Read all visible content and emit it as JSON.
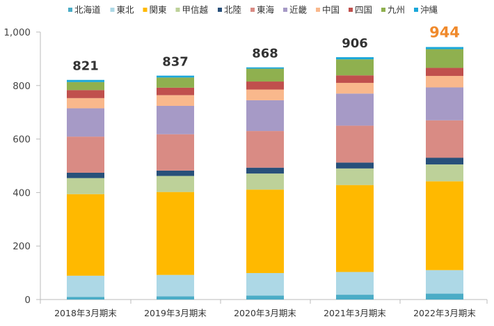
{
  "chart_data": {
    "type": "bar",
    "stacked": true,
    "categories": [
      "2018年3月期末",
      "2019年3月期末",
      "2020年3月期末",
      "2021年3月期末",
      "2022年3月期末"
    ],
    "series": [
      {
        "name": "北海道",
        "color": "#4bacc6",
        "values": [
          10,
          12,
          15,
          18,
          22
        ]
      },
      {
        "name": "東北",
        "color": "#add8e6",
        "values": [
          79,
          80,
          84,
          85,
          88
        ]
      },
      {
        "name": "関東",
        "color": "#ffb900",
        "values": [
          305,
          310,
          312,
          325,
          332
        ]
      },
      {
        "name": "甲信越",
        "color": "#bdd199",
        "values": [
          60,
          60,
          60,
          62,
          63
        ]
      },
      {
        "name": "北陸",
        "color": "#28507a",
        "values": [
          20,
          20,
          22,
          22,
          25
        ]
      },
      {
        "name": "東海",
        "color": "#d98b84",
        "values": [
          135,
          136,
          137,
          138,
          140
        ]
      },
      {
        "name": "近畿",
        "color": "#a69ac6",
        "values": [
          106,
          106,
          115,
          120,
          123
        ]
      },
      {
        "name": "中国",
        "color": "#f9b88c",
        "values": [
          38,
          40,
          40,
          40,
          43
        ]
      },
      {
        "name": "四国",
        "color": "#c0504d",
        "values": [
          30,
          28,
          30,
          28,
          30
        ]
      },
      {
        "name": "九州",
        "color": "#8fb04f",
        "values": [
          30,
          38,
          48,
          60,
          70
        ]
      },
      {
        "name": "沖縄",
        "color": "#1aa7d9",
        "values": [
          8,
          7,
          5,
          8,
          8
        ]
      }
    ],
    "totals": [
      {
        "label": "821",
        "color": "#333333"
      },
      {
        "label": "837",
        "color": "#333333"
      },
      {
        "label": "868",
        "color": "#333333"
      },
      {
        "label": "906",
        "color": "#333333"
      },
      {
        "label": "944",
        "color": "#f08a2c"
      }
    ],
    "ylim": [
      0,
      1000
    ],
    "yticks": [
      "0",
      "200",
      "400",
      "600",
      "800",
      "1,000"
    ],
    "grid": false,
    "legend_position": "top"
  }
}
